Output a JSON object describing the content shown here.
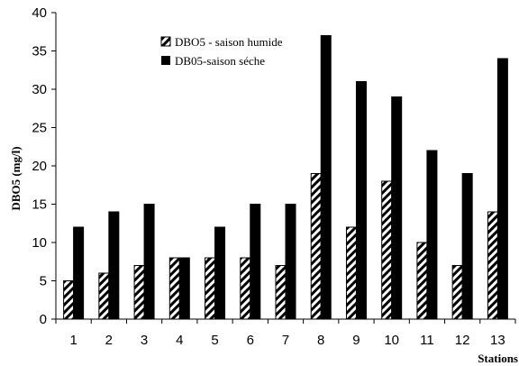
{
  "chart_data": {
    "type": "bar",
    "categories": [
      "1",
      "2",
      "3",
      "4",
      "5",
      "6",
      "7",
      "8",
      "9",
      "10",
      "11",
      "12",
      "13"
    ],
    "series": [
      {
        "name": "DBO5 - saison humide",
        "values": [
          5,
          6,
          7,
          8,
          8,
          8,
          7,
          19,
          12,
          18,
          10,
          7,
          14
        ],
        "pattern": "diagonal-hatch",
        "color": "#000000"
      },
      {
        "name": "DB05-saison séche",
        "values": [
          12,
          14,
          15,
          8,
          12,
          15,
          15,
          37,
          31,
          29,
          22,
          19,
          34
        ],
        "pattern": "solid",
        "color": "#000000"
      }
    ],
    "xlabel": "Stations",
    "ylabel": "DBO5 (mg/l)",
    "ylim": [
      0,
      40
    ],
    "yticks": [
      0,
      5,
      10,
      15,
      20,
      25,
      30,
      35,
      40
    ],
    "grid": false,
    "legend_position": "top-center"
  }
}
